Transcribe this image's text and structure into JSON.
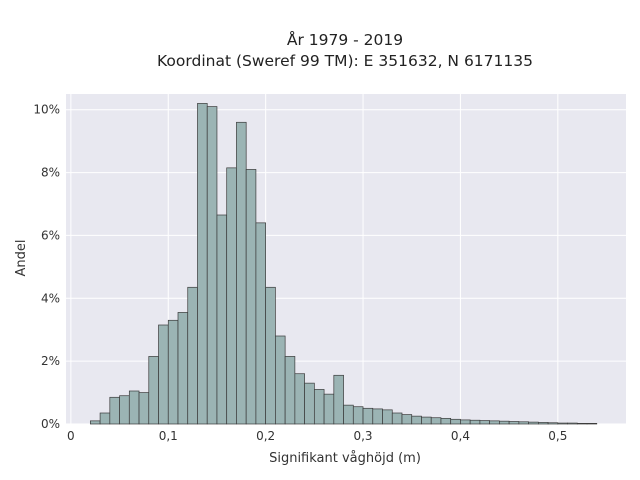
{
  "chart_data": {
    "type": "bar",
    "title": "År 1979 - 2019",
    "subtitle": "Koordinat (Sweref 99 TM): E 351632, N 6171135",
    "xlabel": "Signifikant våghöjd (m)",
    "ylabel": "Andel",
    "bin_width": 0.01,
    "bin_starts": [
      0.02,
      0.03,
      0.04,
      0.05,
      0.06,
      0.07,
      0.08,
      0.09,
      0.1,
      0.11,
      0.12,
      0.13,
      0.14,
      0.15,
      0.16,
      0.17,
      0.18,
      0.19,
      0.2,
      0.21,
      0.22,
      0.23,
      0.24,
      0.25,
      0.26,
      0.27,
      0.28,
      0.29,
      0.3,
      0.31,
      0.32,
      0.33,
      0.34,
      0.35,
      0.36,
      0.37,
      0.38,
      0.39,
      0.4,
      0.41,
      0.42,
      0.43,
      0.44,
      0.45,
      0.46,
      0.47,
      0.48,
      0.49,
      0.5,
      0.51,
      0.52,
      0.53
    ],
    "values": [
      0.1,
      0.35,
      0.85,
      0.9,
      1.05,
      1.0,
      2.15,
      3.15,
      3.3,
      3.55,
      4.35,
      10.2,
      10.1,
      6.65,
      8.15,
      9.6,
      8.1,
      6.4,
      4.35,
      2.8,
      2.15,
      1.6,
      1.3,
      1.1,
      0.95,
      1.55,
      0.6,
      0.55,
      0.5,
      0.48,
      0.45,
      0.35,
      0.3,
      0.25,
      0.22,
      0.2,
      0.18,
      0.15,
      0.13,
      0.12,
      0.11,
      0.1,
      0.09,
      0.08,
      0.07,
      0.06,
      0.05,
      0.04,
      0.03,
      0.03,
      0.02,
      0.02
    ],
    "xlim": [
      -0.005,
      0.57
    ],
    "ylim": [
      0,
      10.5
    ],
    "xticks": [
      0,
      0.1,
      0.2,
      0.3,
      0.4,
      0.5
    ],
    "xtick_labels": [
      "0",
      "0,1",
      "0,2",
      "0,3",
      "0,4",
      "0,5"
    ],
    "yticks": [
      0,
      2,
      4,
      6,
      8,
      10
    ],
    "ytick_labels": [
      "0%",
      "2%",
      "4%",
      "6%",
      "8%",
      "10%"
    ],
    "grid": true,
    "bar_color": "#9bb4b4",
    "bar_edge_color": "#3a3a3a",
    "plot_background": "#e8e8f0",
    "grid_color": "#ffffff"
  }
}
